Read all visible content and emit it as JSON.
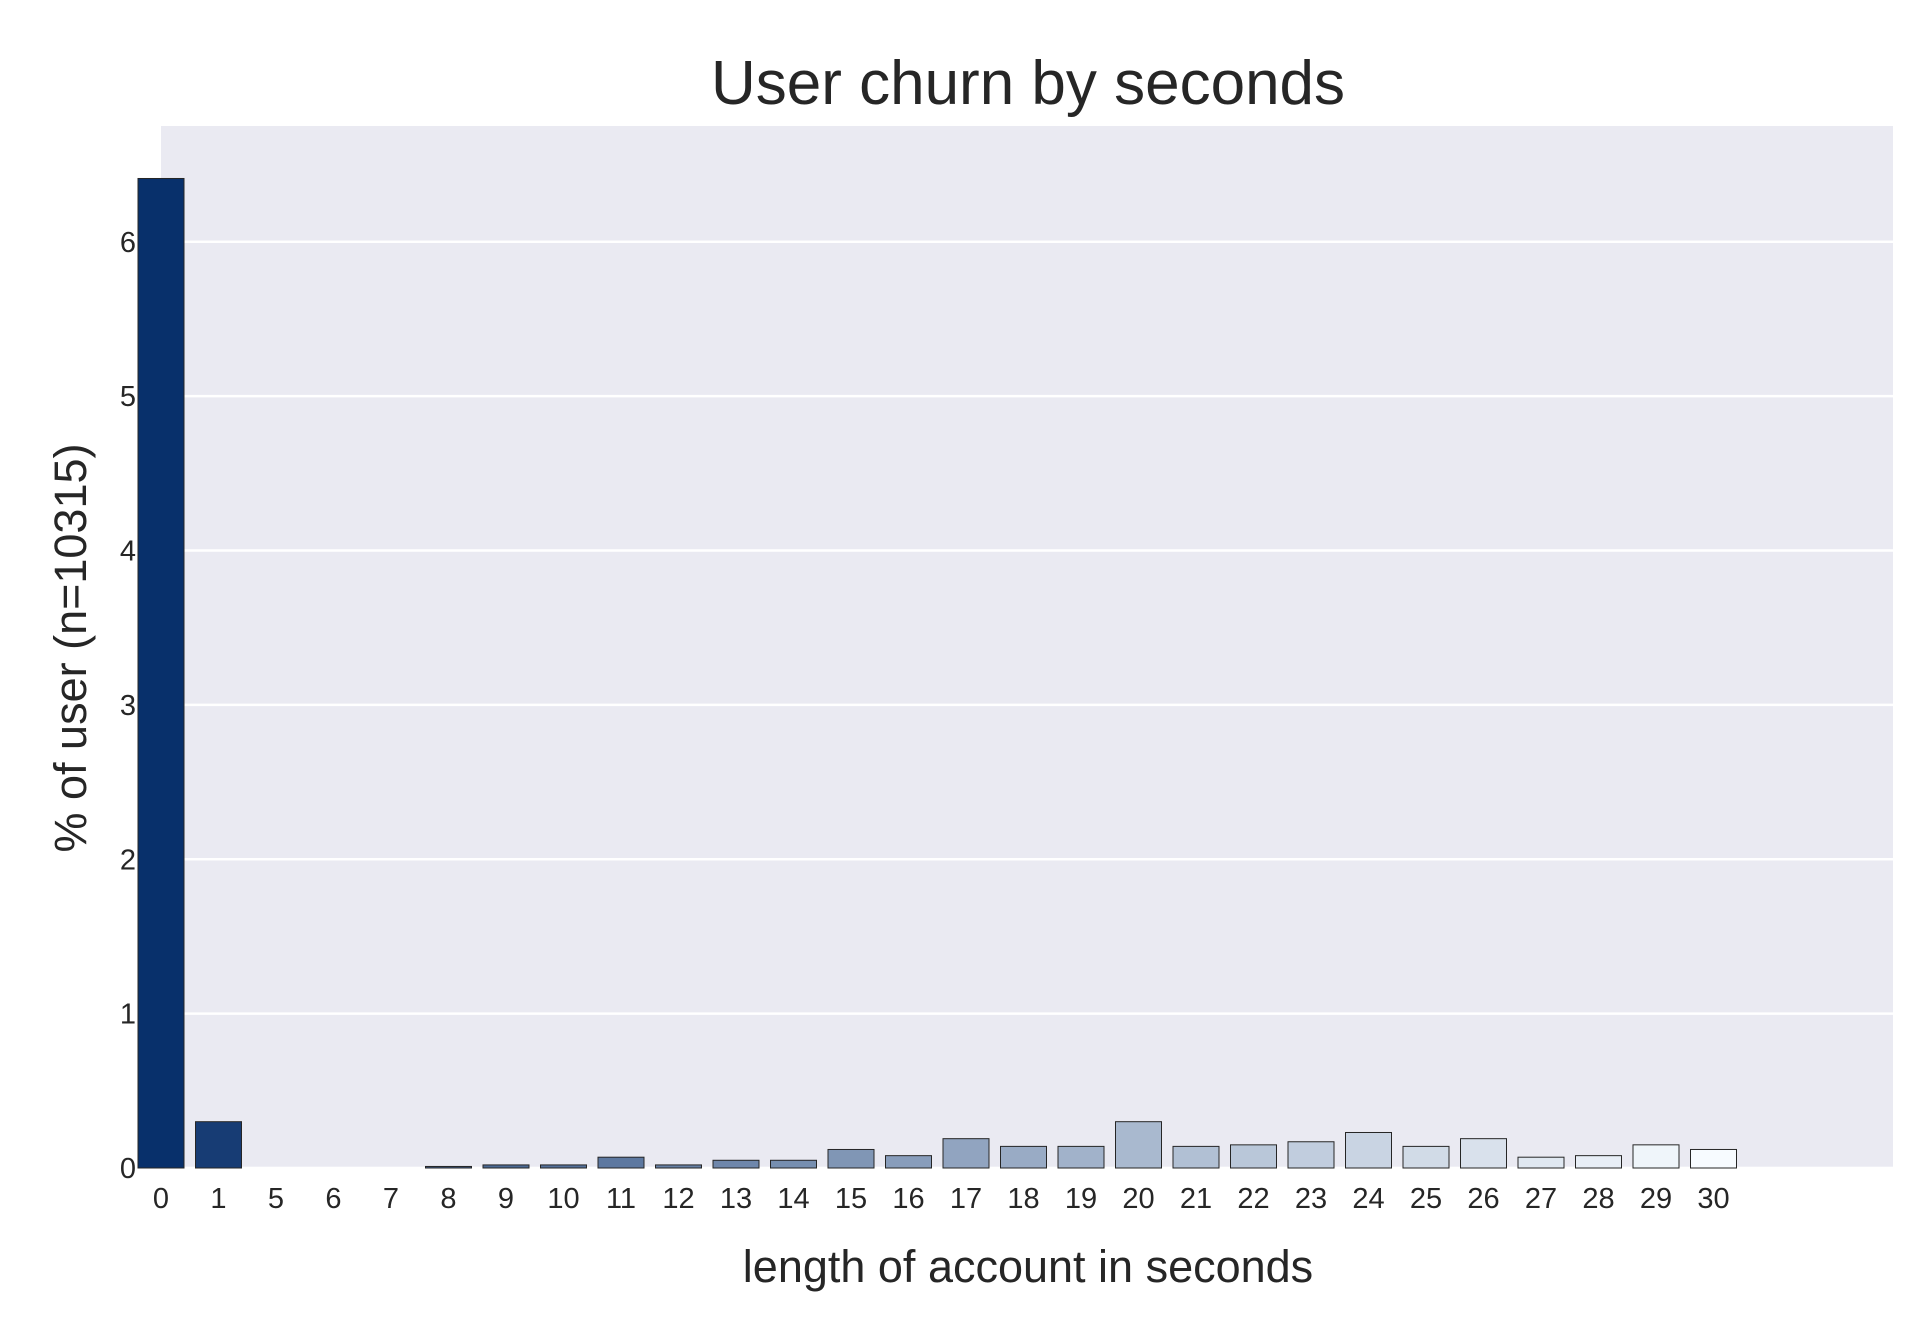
{
  "chart_data": {
    "type": "bar",
    "title": "User churn by seconds",
    "xlabel": "length of account in seconds",
    "ylabel": "% of user (n=10315)",
    "categories": [
      "0",
      "1",
      "5",
      "6",
      "7",
      "8",
      "9",
      "10",
      "11",
      "12",
      "13",
      "14",
      "15",
      "16",
      "17",
      "18",
      "19",
      "20",
      "21",
      "22",
      "23",
      "24",
      "25",
      "26",
      "27",
      "28",
      "29",
      "30"
    ],
    "values": [
      6.41,
      0.3,
      0.0,
      0.0,
      0.0,
      0.01,
      0.02,
      0.02,
      0.07,
      0.02,
      0.05,
      0.05,
      0.12,
      0.08,
      0.19,
      0.14,
      0.14,
      0.3,
      0.14,
      0.15,
      0.17,
      0.23,
      0.14,
      0.19,
      0.07,
      0.08,
      0.15,
      0.12
    ],
    "yticks": [
      "0",
      "1",
      "2",
      "3",
      "4",
      "5",
      "6"
    ],
    "ylim": [
      0,
      6.75
    ],
    "grid": true,
    "palette": "Blues_r",
    "colors": {
      "background": "#eaeaf2",
      "bar_dark": "#08306b",
      "bar_light": "#f7fbff"
    }
  }
}
